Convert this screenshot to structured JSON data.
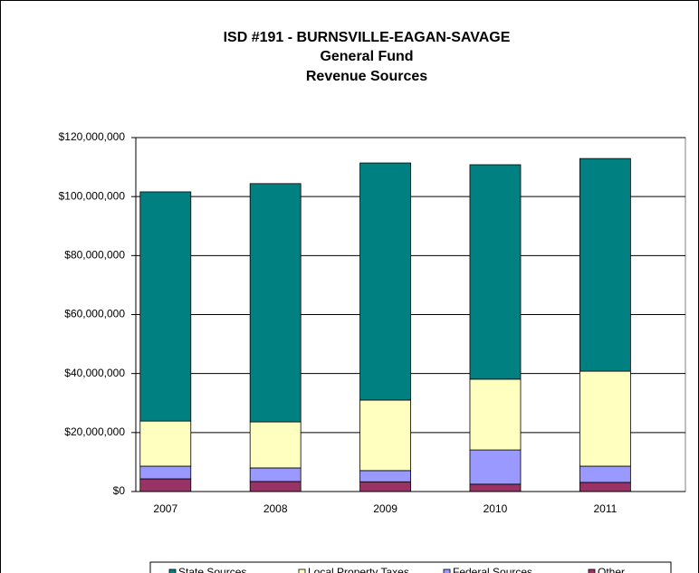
{
  "chart_data": {
    "type": "stacked_bar",
    "title": [
      "ISD #191 - BURNSVILLE-EAGAN-SAVAGE",
      "General Fund",
      "Revenue Sources"
    ],
    "categories": [
      "2007",
      "2008",
      "2009",
      "2010",
      "2011"
    ],
    "series": [
      {
        "name": "Other",
        "color": "#993366",
        "values": [
          4300000,
          3400000,
          3300000,
          2500000,
          3100000
        ]
      },
      {
        "name": "Federal Sources",
        "color": "#9999ff",
        "values": [
          4300000,
          4600000,
          3800000,
          11600000,
          5500000
        ]
      },
      {
        "name": "Local Property Taxes",
        "color": "#ffffc0",
        "values": [
          15300000,
          15600000,
          23900000,
          24000000,
          32200000
        ]
      },
      {
        "name": "State Sources",
        "color": "#008080",
        "values": [
          77700000,
          80800000,
          80400000,
          72700000,
          72100000
        ]
      }
    ],
    "legend_order": [
      "State Sources",
      "Local Property Taxes",
      "Federal Sources",
      "Other"
    ],
    "ylim": [
      0,
      120000000
    ],
    "yticks": [
      {
        "value": 0,
        "label": "$0"
      },
      {
        "value": 20000000,
        "label": "$20,000,000"
      },
      {
        "value": 40000000,
        "label": "$40,000,000"
      },
      {
        "value": 60000000,
        "label": "$60,000,000"
      },
      {
        "value": 80000000,
        "label": "$80,000,000"
      },
      {
        "value": 100000000,
        "label": "$100,000,000"
      },
      {
        "value": 120000000,
        "label": "$120,000,000"
      }
    ],
    "grid": true,
    "legend": "bottom"
  }
}
